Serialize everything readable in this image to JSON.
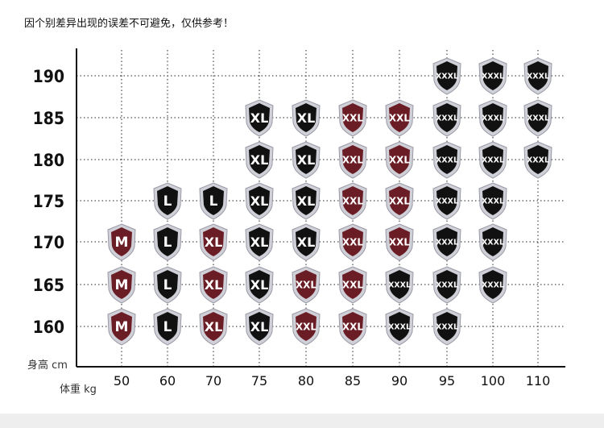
{
  "note": "因个别差异出现的误差不可避免，仅供参考！",
  "chart_data": {
    "type": "table",
    "xlabel": "体重 kg",
    "ylabel": "身高 cm",
    "x": [
      "50",
      "60",
      "70",
      "75",
      "80",
      "85",
      "90",
      "95",
      "100",
      "110"
    ],
    "y": [
      "160",
      "165",
      "170",
      "175",
      "180",
      "185",
      "190"
    ],
    "grid": true,
    "colors": {
      "black": "#111111",
      "red": "#6b1d25"
    },
    "cells": [
      {
        "x": "50",
        "y": "160",
        "size": "M",
        "color": "red"
      },
      {
        "x": "50",
        "y": "165",
        "size": "M",
        "color": "red"
      },
      {
        "x": "50",
        "y": "170",
        "size": "M",
        "color": "red"
      },
      {
        "x": "60",
        "y": "160",
        "size": "L",
        "color": "black"
      },
      {
        "x": "60",
        "y": "165",
        "size": "L",
        "color": "black"
      },
      {
        "x": "60",
        "y": "170",
        "size": "L",
        "color": "black"
      },
      {
        "x": "60",
        "y": "175",
        "size": "L",
        "color": "black"
      },
      {
        "x": "70",
        "y": "160",
        "size": "XL",
        "color": "red"
      },
      {
        "x": "70",
        "y": "165",
        "size": "XL",
        "color": "red"
      },
      {
        "x": "70",
        "y": "170",
        "size": "XL",
        "color": "red"
      },
      {
        "x": "70",
        "y": "175",
        "size": "L",
        "color": "black"
      },
      {
        "x": "75",
        "y": "160",
        "size": "XL",
        "color": "black"
      },
      {
        "x": "75",
        "y": "165",
        "size": "XL",
        "color": "black"
      },
      {
        "x": "75",
        "y": "170",
        "size": "XL",
        "color": "black"
      },
      {
        "x": "75",
        "y": "175",
        "size": "XL",
        "color": "black"
      },
      {
        "x": "75",
        "y": "180",
        "size": "XL",
        "color": "black"
      },
      {
        "x": "75",
        "y": "185",
        "size": "XL",
        "color": "black"
      },
      {
        "x": "80",
        "y": "160",
        "size": "XXL",
        "color": "red"
      },
      {
        "x": "80",
        "y": "165",
        "size": "XXL",
        "color": "red"
      },
      {
        "x": "80",
        "y": "170",
        "size": "XL",
        "color": "black"
      },
      {
        "x": "80",
        "y": "175",
        "size": "XL",
        "color": "black"
      },
      {
        "x": "80",
        "y": "180",
        "size": "XL",
        "color": "black"
      },
      {
        "x": "80",
        "y": "185",
        "size": "XL",
        "color": "black"
      },
      {
        "x": "85",
        "y": "160",
        "size": "XXL",
        "color": "red"
      },
      {
        "x": "85",
        "y": "165",
        "size": "XXL",
        "color": "red"
      },
      {
        "x": "85",
        "y": "170",
        "size": "XXL",
        "color": "red"
      },
      {
        "x": "85",
        "y": "175",
        "size": "XXL",
        "color": "red"
      },
      {
        "x": "85",
        "y": "180",
        "size": "XXL",
        "color": "red"
      },
      {
        "x": "85",
        "y": "185",
        "size": "XXL",
        "color": "red"
      },
      {
        "x": "90",
        "y": "160",
        "size": "XXXL",
        "color": "black"
      },
      {
        "x": "90",
        "y": "165",
        "size": "XXXL",
        "color": "black"
      },
      {
        "x": "90",
        "y": "170",
        "size": "XXL",
        "color": "red"
      },
      {
        "x": "90",
        "y": "175",
        "size": "XXL",
        "color": "red"
      },
      {
        "x": "90",
        "y": "180",
        "size": "XXL",
        "color": "red"
      },
      {
        "x": "90",
        "y": "185",
        "size": "XXL",
        "color": "red"
      },
      {
        "x": "95",
        "y": "160",
        "size": "XXXL",
        "color": "black"
      },
      {
        "x": "95",
        "y": "165",
        "size": "XXXL",
        "color": "black"
      },
      {
        "x": "95",
        "y": "170",
        "size": "XXXL",
        "color": "black"
      },
      {
        "x": "95",
        "y": "175",
        "size": "XXXL",
        "color": "black"
      },
      {
        "x": "95",
        "y": "180",
        "size": "XXXL",
        "color": "black"
      },
      {
        "x": "95",
        "y": "185",
        "size": "XXXL",
        "color": "black"
      },
      {
        "x": "95",
        "y": "190",
        "size": "XXXL",
        "color": "black"
      },
      {
        "x": "100",
        "y": "165",
        "size": "XXXL",
        "color": "black"
      },
      {
        "x": "100",
        "y": "170",
        "size": "XXXL",
        "color": "black"
      },
      {
        "x": "100",
        "y": "175",
        "size": "XXXL",
        "color": "black"
      },
      {
        "x": "100",
        "y": "180",
        "size": "XXXL",
        "color": "black"
      },
      {
        "x": "100",
        "y": "185",
        "size": "XXXL",
        "color": "black"
      },
      {
        "x": "100",
        "y": "190",
        "size": "XXXL",
        "color": "black"
      },
      {
        "x": "110",
        "y": "180",
        "size": "XXXL",
        "color": "black"
      },
      {
        "x": "110",
        "y": "185",
        "size": "XXXL",
        "color": "black"
      },
      {
        "x": "110",
        "y": "190",
        "size": "XXXL",
        "color": "black"
      }
    ]
  }
}
